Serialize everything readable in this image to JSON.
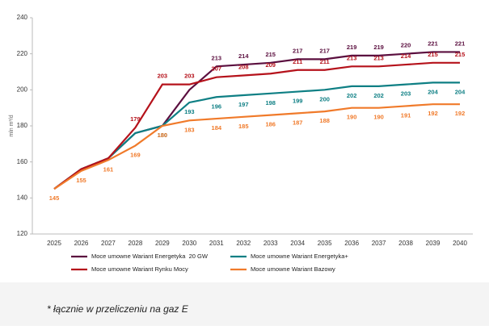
{
  "chart_data": {
    "type": "line",
    "y_label": "mln m³/d",
    "categories": [
      "2025",
      "2026",
      "2027",
      "2028",
      "2029",
      "2030",
      "2031",
      "2032",
      "2033",
      "2034",
      "2035",
      "2036",
      "2037",
      "2038",
      "2039",
      "2040"
    ],
    "ylim": [
      120,
      240
    ],
    "yticks": [
      120,
      140,
      160,
      180,
      200,
      220,
      240
    ],
    "grid": false,
    "series": [
      {
        "name": "Moce umowne Wariant Energetyka  20 GW",
        "color": "#5b0f3f",
        "label_position": "above",
        "values": [
          145,
          156,
          162,
          176,
          180,
          200,
          213,
          214,
          215,
          217,
          217,
          219,
          219,
          220,
          221,
          221
        ],
        "value_labels": [
          null,
          null,
          null,
          null,
          null,
          null,
          "213",
          "214",
          "215",
          "217",
          "217",
          "219",
          "219",
          "220",
          "221",
          "221"
        ]
      },
      {
        "name": "Moce umowne Wariant Energetyka+",
        "color": "#0e7f84",
        "label_position": "below",
        "values": [
          145,
          156,
          162,
          176,
          180,
          193,
          196,
          197,
          198,
          199,
          200,
          202,
          202,
          203,
          204,
          204
        ],
        "value_labels": [
          null,
          null,
          null,
          null,
          "180",
          "193",
          "196",
          "197",
          "198",
          "199",
          "200",
          "202",
          "202",
          "203",
          "204",
          "204"
        ]
      },
      {
        "name": "Moce umowne Wariant Rynku Mocy",
        "color": "#b5121b",
        "label_position": "above",
        "values": [
          145,
          156,
          162,
          179,
          203,
          203,
          207,
          208,
          209,
          211,
          211,
          213,
          213,
          214,
          215,
          215
        ],
        "value_labels": [
          null,
          null,
          null,
          "179",
          "203",
          "203",
          "207",
          "208",
          "209",
          "211",
          "211",
          "213",
          "213",
          "214",
          "215",
          "215"
        ]
      },
      {
        "name": "Moce umowne Wariant Bazowy",
        "color": "#f07a2a",
        "label_position": "below",
        "values": [
          145,
          155,
          161,
          169,
          180,
          183,
          184,
          185,
          186,
          187,
          188,
          190,
          190,
          191,
          192,
          192
        ],
        "value_labels": [
          "145",
          "155",
          "161",
          "169",
          "180",
          "183",
          "184",
          "185",
          "186",
          "187",
          "188",
          "190",
          "190",
          "191",
          "192",
          "192"
        ]
      }
    ]
  },
  "footnote": "* łącznie w przeliczeniu na gaz E"
}
